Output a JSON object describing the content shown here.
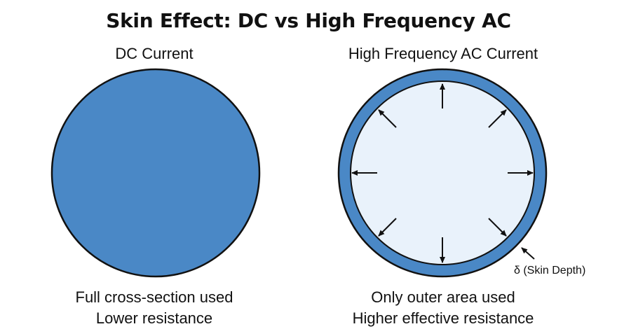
{
  "title": "Skin Effect: DC vs High Frequency AC",
  "panels": {
    "dc": {
      "title": "DC Current",
      "caption_line1": "Full cross-section used",
      "caption_line2": "Lower resistance"
    },
    "ac": {
      "title": "High Frequency AC Current",
      "caption_line1": "Only outer area used",
      "caption_line2": "Higher effective resistance",
      "skin_depth_label": "δ (Skin Depth)"
    }
  },
  "colors": {
    "conductor_fill": "#4a88c6",
    "inner_fill": "#e9f2fb",
    "outline": "#111111"
  },
  "icons": {
    "current_direction_arrows": "outward-arrow-icon"
  }
}
